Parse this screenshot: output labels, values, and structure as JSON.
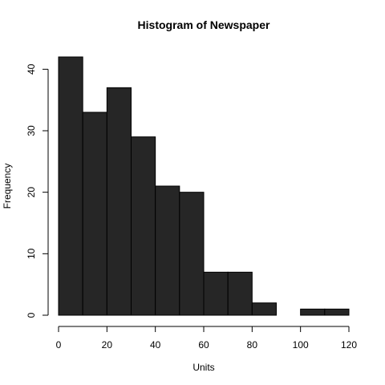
{
  "chart_data": {
    "type": "bar",
    "title": "Histogram of  Newspaper",
    "xlabel": "Units",
    "ylabel": "Frequency",
    "bin_edges": [
      0,
      10,
      20,
      30,
      40,
      50,
      60,
      70,
      80,
      90,
      100,
      110,
      120
    ],
    "values": [
      42,
      33,
      37,
      29,
      21,
      20,
      7,
      7,
      2,
      0,
      1,
      1
    ],
    "xlim": [
      0,
      120
    ],
    "ylim": [
      0,
      42
    ],
    "x_ticks": [
      0,
      20,
      40,
      60,
      80,
      100,
      120
    ],
    "y_ticks": [
      0,
      10,
      20,
      30,
      40
    ],
    "x_tick_labels": [
      "0",
      "20",
      "40",
      "60",
      "80",
      "100",
      "120"
    ],
    "y_tick_labels": [
      "0",
      "10",
      "20",
      "30",
      "40"
    ],
    "grid": false,
    "bar_color": "#262626",
    "edge_color": "#000000"
  }
}
